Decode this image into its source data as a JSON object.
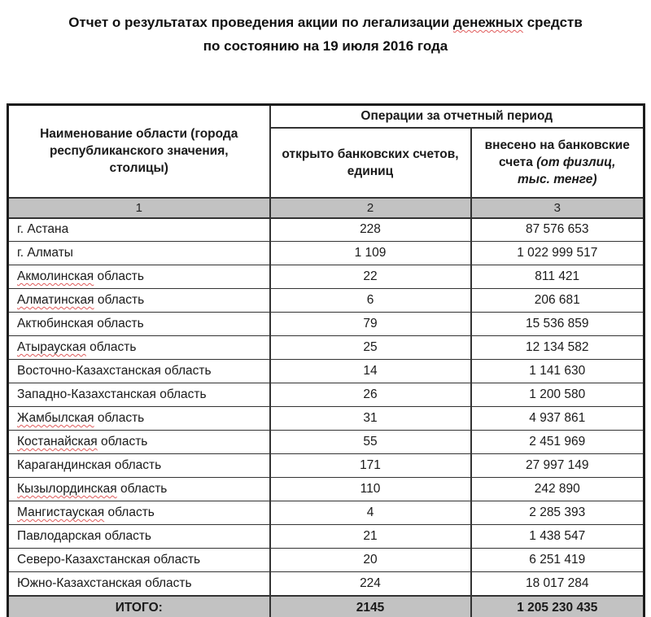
{
  "title": {
    "line1_before": "Отчет о результатах проведения акции по легализации",
    "line1_marked": "денежных",
    "line1_after": "средств",
    "line2": "по состоянию на 19 июля 2016 года"
  },
  "table": {
    "header": {
      "col_region": "Наименование области (города республиканского значения, столицы)",
      "group": "Операции за отчетный период",
      "col_accounts": "открыто банковских счетов, единиц",
      "col_amount_main": "внесено на банковские счета",
      "col_amount_note": "(от физлиц, тыс. тенге)",
      "num_row": [
        "1",
        "2",
        "3"
      ]
    },
    "rows": [
      {
        "region": "г. Астана",
        "accounts": "228",
        "amount": "87 576 653"
      },
      {
        "region": "г. Алматы",
        "accounts": "1 109",
        "amount": "1 022 999 517"
      },
      {
        "region": "Акмолинская область",
        "accounts": "22",
        "amount": "811 421",
        "spellcheck_word": "Акмолинская"
      },
      {
        "region": "Алматинская область",
        "accounts": "6",
        "amount": "206 681",
        "spellcheck_word": "Алматинская"
      },
      {
        "region": "Актюбинская область",
        "accounts": "79",
        "amount": "15 536 859"
      },
      {
        "region": "Атырауская область",
        "accounts": "25",
        "amount": "12 134 582",
        "spellcheck_word": "Атырауская"
      },
      {
        "region": "Восточно-Казахстанская область",
        "accounts": "14",
        "amount": "1 141 630"
      },
      {
        "region": "Западно-Казахстанская область",
        "accounts": "26",
        "amount": "1 200 580"
      },
      {
        "region": "Жамбылская область",
        "accounts": "31",
        "amount": "4 937 861",
        "spellcheck_word": "Жамбылская"
      },
      {
        "region": "Костанайская область",
        "accounts": "55",
        "amount": "2 451 969",
        "spellcheck_word": "Костанайская"
      },
      {
        "region": "Карагандинская область",
        "accounts": "171",
        "amount": "27 997 149"
      },
      {
        "region": "Кызылординская область",
        "accounts": "110",
        "amount": "242 890",
        "spellcheck_word": "Кызылординская"
      },
      {
        "region": "Мангистауская область",
        "accounts": "4",
        "amount": "2 285 393",
        "spellcheck_word": "Мангистауская"
      },
      {
        "region": "Павлодарская область",
        "accounts": "21",
        "amount": "1 438 547"
      },
      {
        "region": "Северо-Казахстанская область",
        "accounts": "20",
        "amount": "6 251 419"
      },
      {
        "region": "Южно-Казахстанская область",
        "accounts": "224",
        "amount": "18 017 284"
      }
    ],
    "total": {
      "label": "ИТОГО:",
      "accounts": "2145",
      "amount": "1 205 230 435"
    }
  },
  "colors": {
    "band_gray": "#c2c2c2",
    "border_dark": "#333333",
    "spellcheck_red": "#e05c5c",
    "text": "#1a1a1a",
    "background": "#ffffff"
  }
}
